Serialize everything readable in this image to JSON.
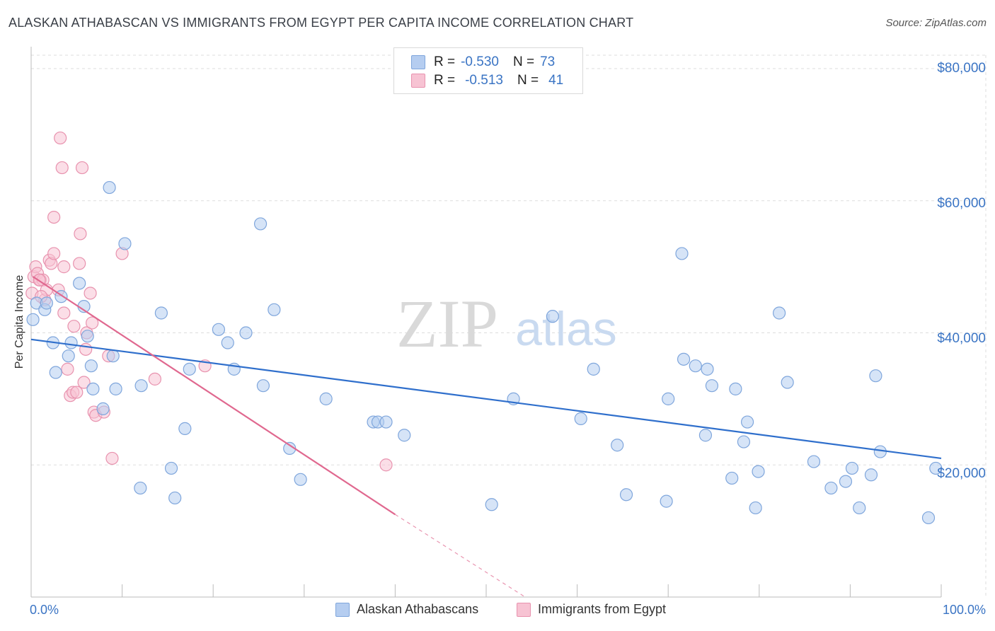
{
  "title": "ALASKAN ATHABASCAN VS IMMIGRANTS FROM EGYPT PER CAPITA INCOME CORRELATION CHART",
  "source": "Source: ZipAtlas.com",
  "watermark": {
    "zip": "ZIP",
    "atlas": "atlas"
  },
  "legend": {
    "rows": [
      {
        "r_label": "R =",
        "r_value": "-0.530",
        "n_label": "N =",
        "n_value": "73"
      },
      {
        "r_label": "R =",
        "r_value": "-0.513",
        "n_label": "N =",
        "n_value": "41"
      }
    ]
  },
  "colors": {
    "blue_fill": "#b5cdf0",
    "blue_stroke": "#7fa6dc",
    "blue_line": "#2f6fcc",
    "pink_fill": "#f7c3d3",
    "pink_stroke": "#e892ae",
    "pink_line": "#e0688f",
    "tick_text": "#3a74c4",
    "grid": "#dddddd"
  },
  "chart_data": {
    "type": "scatter",
    "title": "ALASKAN ATHABASCAN VS IMMIGRANTS FROM EGYPT PER CAPITA INCOME CORRELATION CHART",
    "xlabel": "",
    "ylabel": "Per Capita Income",
    "xlim": [
      0,
      100
    ],
    "ylim": [
      0,
      80000
    ],
    "x_tick_labels": [
      "0.0%",
      "100.0%"
    ],
    "y_ticks": [
      20000,
      40000,
      60000,
      80000
    ],
    "y_tick_labels": [
      "$20,000",
      "$40,000",
      "$60,000",
      "$80,000"
    ],
    "grid": true,
    "legend_position": "top-center",
    "series": [
      {
        "name": "Alaskan Athabascans",
        "color": "#b5cdf0",
        "trend": {
          "x": [
            0,
            100
          ],
          "y": [
            39000,
            21000
          ]
        },
        "points": [
          [
            0.2,
            42000
          ],
          [
            0.6,
            44500
          ],
          [
            1.5,
            43500
          ],
          [
            1.7,
            44500
          ],
          [
            2.4,
            38500
          ],
          [
            2.7,
            34000
          ],
          [
            3.3,
            45500
          ],
          [
            4.1,
            36500
          ],
          [
            4.4,
            38500
          ],
          [
            5.3,
            47500
          ],
          [
            5.8,
            44000
          ],
          [
            6.2,
            39500
          ],
          [
            6.6,
            35000
          ],
          [
            6.8,
            31500
          ],
          [
            7.9,
            28500
          ],
          [
            8.6,
            62000
          ],
          [
            9.0,
            36500
          ],
          [
            9.3,
            31500
          ],
          [
            10.3,
            53500
          ],
          [
            12.0,
            16500
          ],
          [
            12.1,
            32000
          ],
          [
            14.3,
            43000
          ],
          [
            15.4,
            19500
          ],
          [
            15.8,
            15000
          ],
          [
            16.9,
            25500
          ],
          [
            17.4,
            34500
          ],
          [
            20.6,
            40500
          ],
          [
            21.6,
            38500
          ],
          [
            22.3,
            34500
          ],
          [
            23.6,
            40000
          ],
          [
            25.2,
            56500
          ],
          [
            25.5,
            32000
          ],
          [
            26.7,
            43500
          ],
          [
            28.4,
            22500
          ],
          [
            29.6,
            17800
          ],
          [
            32.4,
            30000
          ],
          [
            37.6,
            26500
          ],
          [
            38.1,
            26500
          ],
          [
            39.0,
            26500
          ],
          [
            41.0,
            24500
          ],
          [
            50.6,
            14000
          ],
          [
            53.0,
            30000
          ],
          [
            57.3,
            42500
          ],
          [
            60.4,
            27000
          ],
          [
            61.8,
            34500
          ],
          [
            64.4,
            23000
          ],
          [
            65.4,
            15500
          ],
          [
            69.8,
            14500
          ],
          [
            70.0,
            30000
          ],
          [
            71.5,
            52000
          ],
          [
            71.7,
            36000
          ],
          [
            73.0,
            35000
          ],
          [
            74.1,
            24500
          ],
          [
            74.3,
            34500
          ],
          [
            74.8,
            32000
          ],
          [
            77.0,
            18000
          ],
          [
            77.4,
            31500
          ],
          [
            78.3,
            23500
          ],
          [
            78.7,
            26500
          ],
          [
            79.6,
            13500
          ],
          [
            79.9,
            19000
          ],
          [
            82.2,
            43000
          ],
          [
            83.1,
            32500
          ],
          [
            86.0,
            20500
          ],
          [
            87.9,
            16500
          ],
          [
            89.5,
            17500
          ],
          [
            90.2,
            19500
          ],
          [
            91.0,
            13500
          ],
          [
            92.3,
            18500
          ],
          [
            92.8,
            33500
          ],
          [
            93.3,
            22000
          ],
          [
            98.6,
            12000
          ],
          [
            99.4,
            19500
          ]
        ]
      },
      {
        "name": "Immigrants from Egypt",
        "color": "#f7c3d3",
        "trend": {
          "x": [
            0.2,
            40
          ],
          "y": [
            48500,
            12500
          ]
        },
        "trend_dashed": {
          "x": [
            40,
            60
          ],
          "y": [
            12500,
            -5000
          ]
        },
        "points": [
          [
            0.1,
            46000
          ],
          [
            0.3,
            48500
          ],
          [
            0.5,
            50000
          ],
          [
            0.7,
            49000
          ],
          [
            1.0,
            48000
          ],
          [
            1.3,
            48000
          ],
          [
            1.5,
            45000
          ],
          [
            1.7,
            46500
          ],
          [
            2.0,
            51000
          ],
          [
            2.2,
            50500
          ],
          [
            2.5,
            52000
          ],
          [
            2.5,
            57500
          ],
          [
            3.0,
            46500
          ],
          [
            3.2,
            69500
          ],
          [
            3.4,
            65000
          ],
          [
            3.6,
            43000
          ],
          [
            3.6,
            50000
          ],
          [
            4.0,
            34500
          ],
          [
            4.3,
            30500
          ],
          [
            4.6,
            31000
          ],
          [
            4.7,
            41000
          ],
          [
            5.0,
            31000
          ],
          [
            5.3,
            50500
          ],
          [
            5.4,
            55000
          ],
          [
            5.6,
            65000
          ],
          [
            5.8,
            32500
          ],
          [
            6.0,
            37500
          ],
          [
            6.1,
            40000
          ],
          [
            6.5,
            46000
          ],
          [
            6.7,
            41500
          ],
          [
            6.9,
            28000
          ],
          [
            7.1,
            27500
          ],
          [
            8.0,
            28000
          ],
          [
            8.5,
            36500
          ],
          [
            8.9,
            21000
          ],
          [
            10.0,
            52000
          ],
          [
            13.6,
            33000
          ],
          [
            19.1,
            35000
          ],
          [
            39.0,
            20000
          ],
          [
            1.1,
            45500
          ],
          [
            0.9,
            48000
          ]
        ]
      }
    ]
  },
  "x_axis": {
    "left_label": "0.0%",
    "right_label": "100.0%"
  }
}
